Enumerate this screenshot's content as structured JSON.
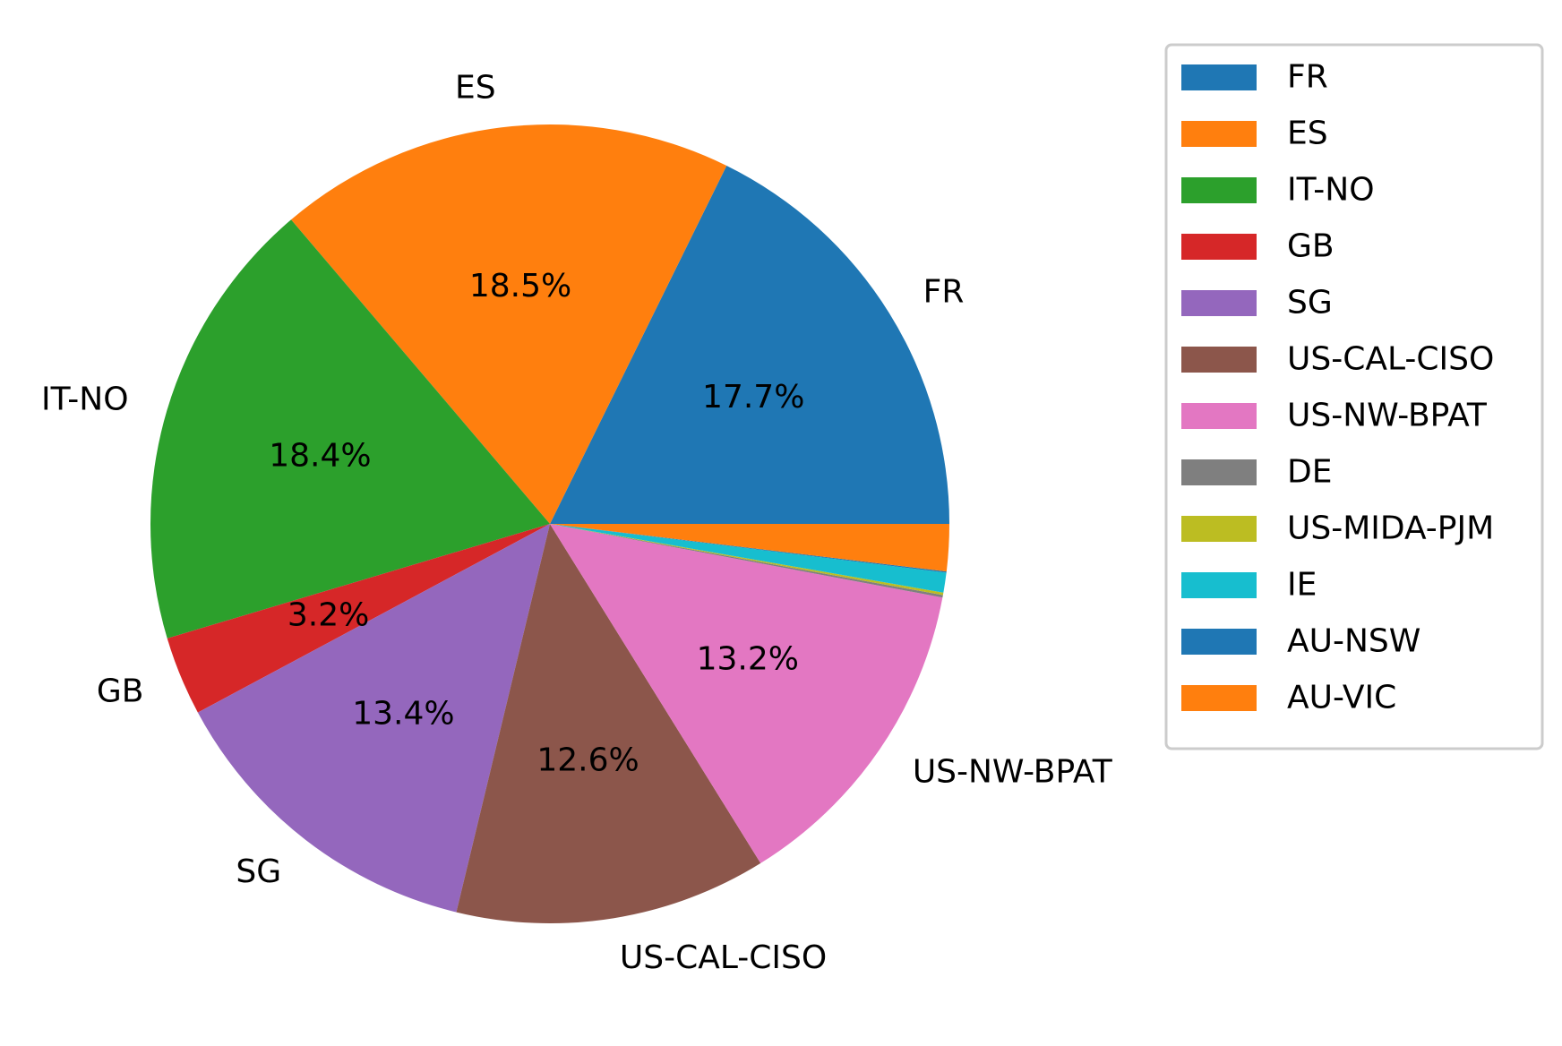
{
  "chart_data": {
    "type": "pie",
    "title": "",
    "legend_placement": "upper-right, outside plot",
    "start_angle_deg": 0,
    "direction": "counterclockwise",
    "slices": [
      {
        "label": "FR",
        "value": 17.7,
        "pct_label": "17.7%",
        "color": "#1f77b4"
      },
      {
        "label": "ES",
        "value": 18.5,
        "pct_label": "18.5%",
        "color": "#ff7f0e"
      },
      {
        "label": "IT-NO",
        "value": 18.4,
        "pct_label": "18.4%",
        "color": "#2ca02c"
      },
      {
        "label": "GB",
        "value": 3.2,
        "pct_label": "3.2%",
        "color": "#d62728"
      },
      {
        "label": "SG",
        "value": 13.4,
        "pct_label": "13.4%",
        "color": "#9467bd"
      },
      {
        "label": "US-CAL-CISO",
        "value": 12.6,
        "pct_label": "12.6%",
        "color": "#8c564b"
      },
      {
        "label": "US-NW-BPAT",
        "value": 13.2,
        "pct_label": "13.2%",
        "color": "#e377c2"
      },
      {
        "label": "DE",
        "value": 0.1,
        "pct_label": "",
        "color": "#7f7f7f"
      },
      {
        "label": "US-MIDA-PJM",
        "value": 0.1,
        "pct_label": "",
        "color": "#bcbd22"
      },
      {
        "label": "IE",
        "value": 0.8,
        "pct_label": "",
        "color": "#17becf"
      },
      {
        "label": "AU-NSW",
        "value": 0.05,
        "pct_label": "",
        "color": "#1f77b4"
      },
      {
        "label": "AU-VIC",
        "value": 1.9,
        "pct_label": "",
        "color": "#ff7f0e"
      }
    ],
    "outer_labels": [
      "FR",
      "ES",
      "IT-NO",
      "GB",
      "SG",
      "US-CAL-CISO",
      "US-NW-BPAT",
      "",
      "",
      "",
      "",
      ""
    ],
    "legend_entries": [
      "FR",
      "ES",
      "IT-NO",
      "GB",
      "SG",
      "US-CAL-CISO",
      "US-NW-BPAT",
      "DE",
      "US-MIDA-PJM",
      "IE",
      "AU-NSW",
      "AU-VIC"
    ]
  }
}
